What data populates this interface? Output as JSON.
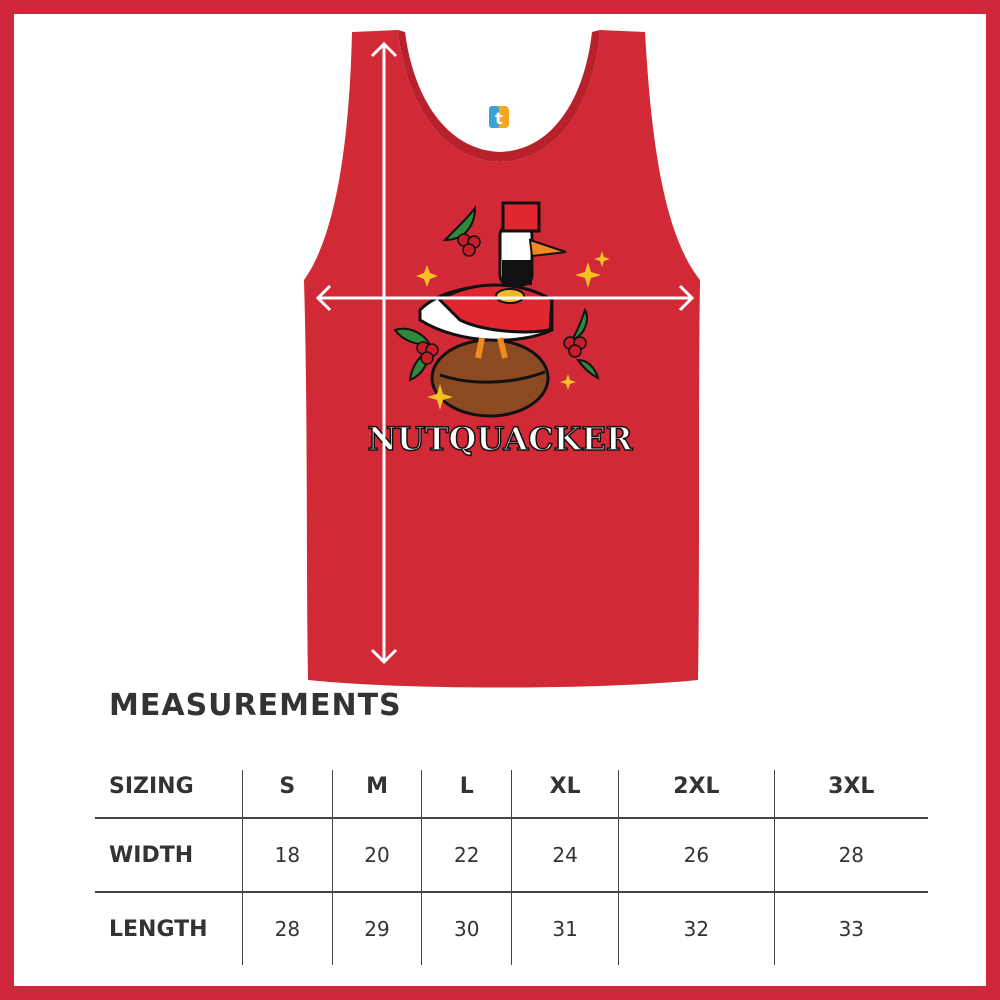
{
  "product": {
    "design_text": "NUTQUACKER",
    "garment_color": "#d12a36",
    "brand_color": "#d0283a"
  },
  "measurements": {
    "title": "MEASUREMENTS",
    "header": [
      "SIZING",
      "S",
      "M",
      "L",
      "XL",
      "2XL",
      "3XL"
    ],
    "rows": [
      [
        "WIDTH",
        "18",
        "20",
        "22",
        "24",
        "26",
        "28"
      ],
      [
        "LENGTH",
        "28",
        "29",
        "30",
        "31",
        "32",
        "33"
      ]
    ]
  }
}
